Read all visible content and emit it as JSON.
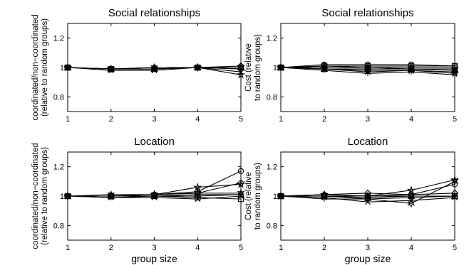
{
  "chart_data": [
    {
      "type": "line",
      "title": "Social relationships",
      "ylabel": [
        "coordinated/non−coordinated",
        "(relative to random groups)"
      ],
      "xlabel": "",
      "xlim": [
        1,
        5
      ],
      "ylim": [
        0.7,
        1.3
      ],
      "xticks": [
        "1",
        "2",
        "3",
        "4",
        "5"
      ],
      "yticks": [
        "0.8",
        "1",
        "1.2"
      ],
      "x": [
        1,
        2,
        3,
        4,
        5
      ],
      "series": [
        {
          "marker": "circle",
          "values": [
            1.0,
            0.99,
            0.99,
            1.0,
            0.99
          ]
        },
        {
          "marker": "square",
          "values": [
            1.0,
            0.99,
            0.99,
            1.0,
            1.0
          ]
        },
        {
          "marker": "diamond",
          "values": [
            1.0,
            0.99,
            1.0,
            1.0,
            1.01
          ]
        },
        {
          "marker": "triangle",
          "values": [
            1.0,
            0.99,
            0.99,
            1.0,
            1.0
          ]
        },
        {
          "marker": "star",
          "values": [
            1.0,
            0.99,
            0.99,
            1.0,
            0.95
          ]
        },
        {
          "marker": "x",
          "values": [
            1.0,
            0.98,
            0.98,
            1.0,
            0.97
          ]
        },
        {
          "marker": "hexagram",
          "values": [
            1.0,
            0.99,
            1.0,
            1.0,
            1.0
          ]
        },
        {
          "marker": "plus",
          "values": [
            1.0,
            0.99,
            0.99,
            1.0,
            0.99
          ]
        }
      ]
    },
    {
      "type": "line",
      "title": "Social relationships",
      "ylabel": [
        "Cost (relative",
        "to random groups)"
      ],
      "xlabel": "",
      "xlim": [
        1,
        5
      ],
      "ylim": [
        0.7,
        1.3
      ],
      "xticks": [
        "1",
        "2",
        "3",
        "4",
        "5"
      ],
      "yticks": [
        "0.8",
        "1",
        "1.2"
      ],
      "x": [
        1,
        2,
        3,
        4,
        5
      ],
      "series": [
        {
          "marker": "circle",
          "values": [
            1.0,
            1.02,
            1.02,
            1.02,
            1.01
          ]
        },
        {
          "marker": "square",
          "values": [
            1.0,
            1.01,
            1.01,
            1.01,
            1.01
          ]
        },
        {
          "marker": "diamond",
          "values": [
            1.0,
            1.0,
            1.0,
            1.0,
            1.0
          ]
        },
        {
          "marker": "triangle",
          "values": [
            1.0,
            0.99,
            0.99,
            0.99,
            0.99
          ]
        },
        {
          "marker": "star",
          "values": [
            1.0,
            0.99,
            0.98,
            0.98,
            0.96
          ]
        },
        {
          "marker": "x",
          "values": [
            1.0,
            0.99,
            0.97,
            0.98,
            0.97
          ]
        },
        {
          "marker": "hexagram",
          "values": [
            1.0,
            1.01,
            1.0,
            0.99,
            0.98
          ]
        },
        {
          "marker": "plus",
          "values": [
            1.0,
            0.98,
            0.96,
            0.97,
            0.95
          ]
        }
      ]
    },
    {
      "type": "line",
      "title": "Location",
      "ylabel": [
        "coordinated/non−coordinated",
        "(relative to random groups)"
      ],
      "xlabel": "group size",
      "xlim": [
        1,
        5
      ],
      "ylim": [
        0.7,
        1.3
      ],
      "xticks": [
        "1",
        "2",
        "3",
        "4",
        "5"
      ],
      "yticks": [
        "0.8",
        "1",
        "1.2"
      ],
      "x": [
        1,
        2,
        3,
        4,
        5
      ],
      "series": [
        {
          "marker": "circle",
          "values": [
            1.0,
            1.0,
            1.01,
            1.03,
            1.17
          ]
        },
        {
          "marker": "square",
          "values": [
            1.0,
            1.0,
            1.0,
            0.99,
            0.98
          ]
        },
        {
          "marker": "diamond",
          "values": [
            1.0,
            1.0,
            1.01,
            1.02,
            1.09
          ]
        },
        {
          "marker": "triangle",
          "values": [
            1.0,
            1.0,
            1.0,
            1.01,
            1.01
          ]
        },
        {
          "marker": "star",
          "values": [
            1.0,
            1.0,
            1.01,
            1.06,
            1.08
          ]
        },
        {
          "marker": "x",
          "values": [
            1.0,
            0.99,
            0.99,
            0.98,
            1.0
          ]
        },
        {
          "marker": "hexagram",
          "values": [
            1.0,
            1.01,
            1.01,
            1.02,
            1.02
          ]
        },
        {
          "marker": "plus",
          "values": [
            1.0,
            0.99,
            1.0,
            1.0,
            1.01
          ]
        }
      ]
    },
    {
      "type": "line",
      "title": "Location",
      "ylabel": [
        "Cost (relative",
        "to random groups)"
      ],
      "xlabel": "group size",
      "xlim": [
        1,
        5
      ],
      "ylim": [
        0.7,
        1.3
      ],
      "xticks": [
        "1",
        "2",
        "3",
        "4",
        "5"
      ],
      "yticks": [
        "0.8",
        "1",
        "1.2"
      ],
      "x": [
        1,
        2,
        3,
        4,
        5
      ],
      "series": [
        {
          "marker": "circle",
          "values": [
            1.0,
            1.0,
            1.0,
            1.01,
            1.08
          ]
        },
        {
          "marker": "square",
          "values": [
            1.0,
            1.0,
            0.99,
            1.0,
            1.0
          ]
        },
        {
          "marker": "diamond",
          "values": [
            1.0,
            1.01,
            1.02,
            1.01,
            1.02
          ]
        },
        {
          "marker": "triangle",
          "values": [
            1.0,
            1.0,
            1.0,
            1.0,
            1.0
          ]
        },
        {
          "marker": "star",
          "values": [
            1.0,
            1.01,
            1.0,
            1.04,
            1.11
          ]
        },
        {
          "marker": "x",
          "values": [
            1.0,
            0.99,
            0.96,
            0.97,
            0.99
          ]
        },
        {
          "marker": "hexagram",
          "values": [
            1.0,
            1.0,
            0.98,
            0.95,
            1.1
          ]
        },
        {
          "marker": "plus",
          "values": [
            1.0,
            0.98,
            0.98,
            0.99,
            1.0
          ]
        }
      ]
    }
  ]
}
